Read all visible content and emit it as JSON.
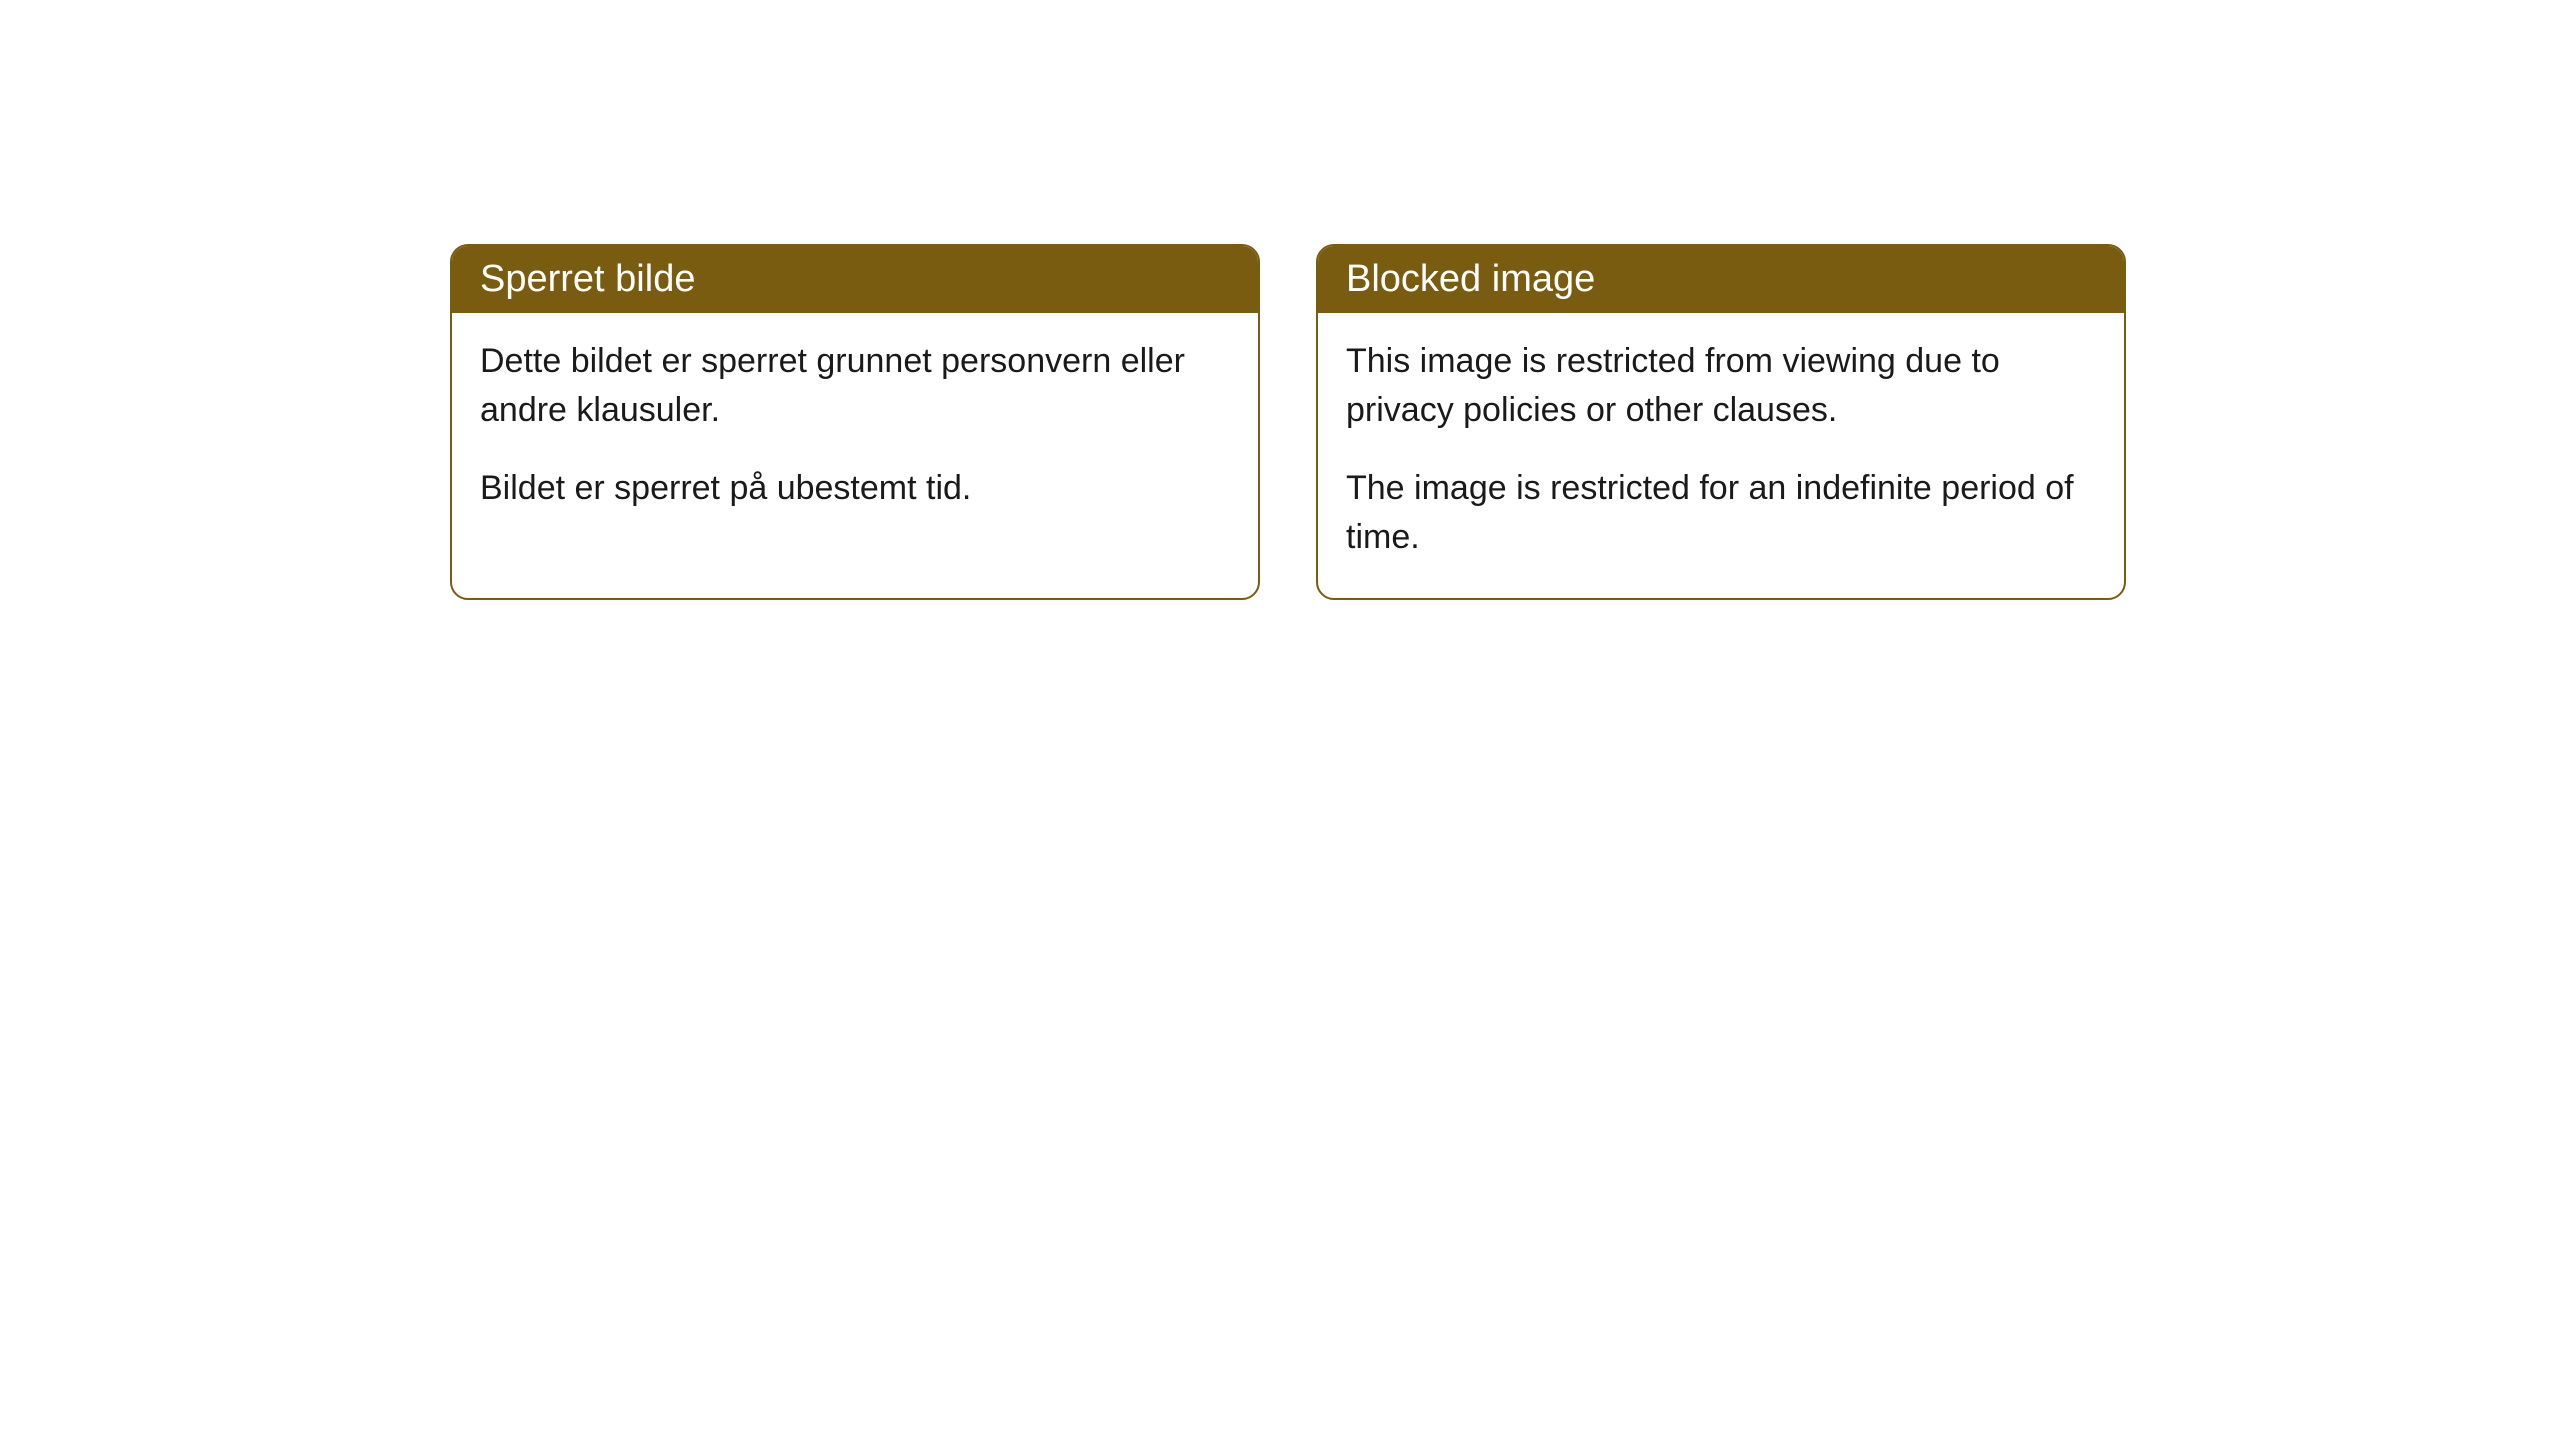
{
  "styling": {
    "header_bg_color": "#7a5c11",
    "header_text_color": "#ffffff",
    "border_color": "#7a5c11",
    "body_text_color": "#1a1a1a",
    "card_bg_color": "#ffffff",
    "page_bg_color": "#ffffff",
    "border_radius": 18,
    "header_fontsize": 38,
    "body_fontsize": 34
  },
  "cards": {
    "norwegian": {
      "title": "Sperret bilde",
      "paragraph1": "Dette bildet er sperret grunnet personvern eller andre klausuler.",
      "paragraph2": "Bildet er sperret på ubestemt tid."
    },
    "english": {
      "title": "Blocked image",
      "paragraph1": "This image is restricted from viewing due to privacy policies or other clauses.",
      "paragraph2": "The image is restricted for an indefinite period of time."
    }
  }
}
